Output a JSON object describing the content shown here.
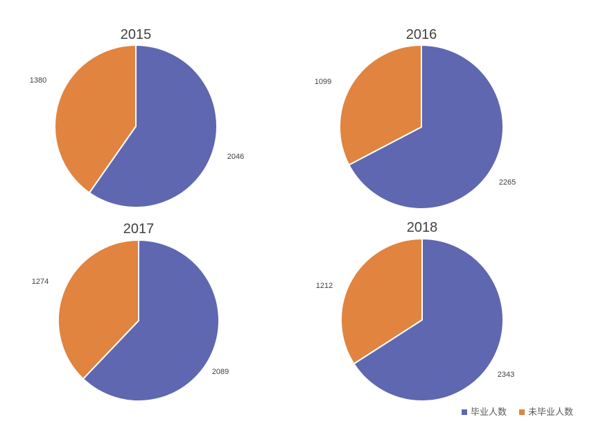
{
  "chart_data": [
    {
      "type": "pie",
      "title": "2015",
      "categories": [
        "毕业人数",
        "未毕业人数"
      ],
      "values": [
        2046,
        1380
      ]
    },
    {
      "type": "pie",
      "title": "2016",
      "categories": [
        "毕业人数",
        "未毕业人数"
      ],
      "values": [
        2265,
        1099
      ]
    },
    {
      "type": "pie",
      "title": "2017",
      "categories": [
        "毕业人数",
        "未毕业人数"
      ],
      "values": [
        2089,
        1274
      ]
    },
    {
      "type": "pie",
      "title": "2018",
      "categories": [
        "毕业人数",
        "未毕业人数"
      ],
      "values": [
        2343,
        1212
      ]
    }
  ],
  "legend": {
    "placement": "bottom-right",
    "items": [
      {
        "label": "毕业人数",
        "color": "#5f67b0"
      },
      {
        "label": "未毕业人数",
        "color": "#e0843f"
      }
    ]
  }
}
